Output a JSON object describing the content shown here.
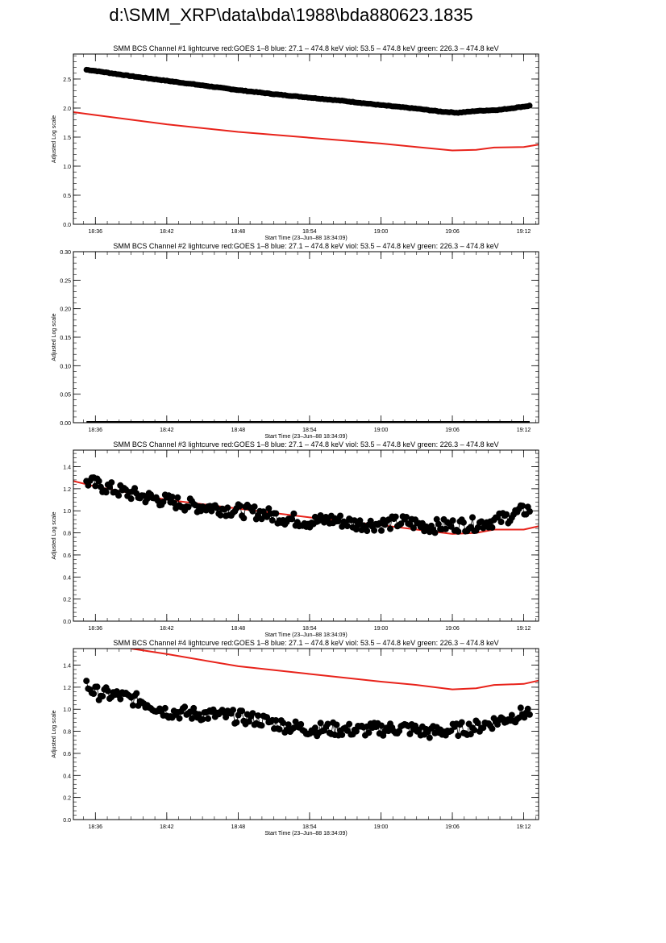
{
  "page": {
    "title": "d:\\SMM_XRP\\data\\bda\\1988\\bda880623.1835"
  },
  "colors": {
    "goes": "#e8231b",
    "bcs": "#000000",
    "axis": "#000000"
  },
  "chart_data": [
    {
      "type": "line",
      "title": "SMM BCS Channel #1 lightcurve  red:GOES 1–8  blue: 27.1 – 474.8 keV  viol: 53.5 – 474.8 keV  green: 226.3 – 474.8 keV",
      "xlabel": "Start Time (23–Jun–88 18:34:09)",
      "ylabel": "Adjusted Log scale",
      "xlim": [
        "18:34:09",
        "19:13:15"
      ],
      "ylim": [
        0,
        2.93
      ],
      "yticks": [
        "0.0",
        "0.5",
        "1.0",
        "1.5",
        "2.0",
        "2.5"
      ],
      "ytick_values": [
        0,
        0.5,
        1.0,
        1.5,
        2.0,
        2.5
      ],
      "xticks": [
        "18:36",
        "18:42",
        "18:48",
        "18:54",
        "19:00",
        "19:06",
        "19:12"
      ],
      "series": [
        {
          "color": "#e8231b",
          "style": "line",
          "x": [
            "18:34:09",
            "18:36:00",
            "18:42:00",
            "18:48:00",
            "18:54:00",
            "19:00:00",
            "19:03:00",
            "19:06:00",
            "19:08:00",
            "19:09:30",
            "19:12:00",
            "19:13:15"
          ],
          "values": [
            1.93,
            1.88,
            1.72,
            1.59,
            1.49,
            1.39,
            1.33,
            1.27,
            1.28,
            1.32,
            1.33,
            1.37
          ]
        },
        {
          "color": "#000000",
          "style": "markers",
          "x": [
            "18:35:15",
            "18:36:00",
            "18:39:00",
            "18:42:00",
            "18:45:00",
            "18:48:00",
            "18:51:00",
            "18:54:00",
            "18:57:00",
            "19:00:00",
            "19:03:00",
            "19:05:00",
            "19:06:30",
            "19:08:00",
            "19:10:00",
            "19:12:30"
          ],
          "values": [
            2.66,
            2.64,
            2.55,
            2.47,
            2.39,
            2.31,
            2.24,
            2.18,
            2.12,
            2.05,
            1.99,
            1.94,
            1.92,
            1.95,
            1.97,
            2.04
          ]
        }
      ]
    },
    {
      "type": "line",
      "title": "SMM BCS Channel #2 lightcurve  red:GOES 1–8  blue: 27.1 – 474.8 keV  viol: 53.5 – 474.8 keV  green: 226.3 – 474.8 keV",
      "xlabel": "Start Time (23–Jun–88 18:34:09)",
      "ylabel": "Adjusted Log scale",
      "xlim": [
        "18:34:09",
        "19:13:15"
      ],
      "ylim": [
        0,
        0.3
      ],
      "yticks": [
        "0.00",
        "0.05",
        "0.10",
        "0.15",
        "0.20",
        "0.25",
        "0.30"
      ],
      "ytick_values": [
        0,
        0.05,
        0.1,
        0.15,
        0.2,
        0.25,
        0.3
      ],
      "xticks": [
        "18:36",
        "18:42",
        "18:48",
        "18:54",
        "19:00",
        "19:06",
        "19:12"
      ],
      "series": [
        {
          "color": "#000000",
          "style": "flat",
          "x": [
            "18:35:15",
            "19:12:30"
          ],
          "values": [
            0.0,
            0.0
          ]
        }
      ]
    },
    {
      "type": "line",
      "title": "SMM BCS Channel #3 lightcurve  red:GOES 1–8  blue: 27.1 – 474.8 keV  viol: 53.5 – 474.8 keV  green: 226.3 – 474.8 keV",
      "xlabel": "Start Time (23–Jun–88 18:34:09)",
      "ylabel": "Adjusted Log scale",
      "xlim": [
        "18:34:09",
        "19:13:15"
      ],
      "ylim": [
        0,
        1.55
      ],
      "yticks": [
        "0.0",
        "0.2",
        "0.4",
        "0.6",
        "0.8",
        "1.0",
        "1.2",
        "1.4"
      ],
      "ytick_values": [
        0,
        0.2,
        0.4,
        0.6,
        0.8,
        1.0,
        1.2,
        1.4
      ],
      "xticks": [
        "18:36",
        "18:42",
        "18:48",
        "18:54",
        "19:00",
        "19:06",
        "19:12"
      ],
      "series": [
        {
          "color": "#e8231b",
          "style": "line",
          "x": [
            "18:34:09",
            "18:36:00",
            "18:42:00",
            "18:48:00",
            "18:54:00",
            "19:00:00",
            "19:03:00",
            "19:06:00",
            "19:08:00",
            "19:09:30",
            "19:12:00",
            "19:13:15"
          ],
          "values": [
            1.27,
            1.22,
            1.1,
            1.02,
            0.94,
            0.87,
            0.83,
            0.79,
            0.8,
            0.83,
            0.83,
            0.86
          ]
        },
        {
          "color": "#000000",
          "style": "markers",
          "x": [
            "18:35:15",
            "18:36:00",
            "18:38:00",
            "18:40:00",
            "18:42:00",
            "18:44:00",
            "18:46:00",
            "18:48:00",
            "18:50:00",
            "18:52:00",
            "18:54:00",
            "18:56:00",
            "18:58:00",
            "19:00:00",
            "19:02:00",
            "19:04:00",
            "19:06:00",
            "19:08:00",
            "19:10:00",
            "19:12:30"
          ],
          "values": [
            1.27,
            1.24,
            1.18,
            1.13,
            1.09,
            1.05,
            1.03,
            1.0,
            0.98,
            0.93,
            0.9,
            0.92,
            0.88,
            0.88,
            0.9,
            0.86,
            0.87,
            0.88,
            0.92,
            1.02
          ]
        }
      ]
    },
    {
      "type": "line",
      "title": "SMM BCS Channel #4 lightcurve  red:GOES 1–8  blue: 27.1 – 474.8 keV  viol: 53.5 – 474.8 keV  green: 226.3 – 474.8 keV",
      "xlabel": "Start Time (23–Jun–88 18:34:09)",
      "ylabel": "Adjusted Log scale",
      "xlim": [
        "18:34:09",
        "19:13:15"
      ],
      "ylim": [
        0,
        1.55
      ],
      "yticks": [
        "0.0",
        "0.2",
        "0.4",
        "0.6",
        "0.8",
        "1.0",
        "1.2",
        "1.4"
      ],
      "ytick_values": [
        0,
        0.2,
        0.4,
        0.6,
        0.8,
        1.0,
        1.2,
        1.4
      ],
      "xticks": [
        "18:36",
        "18:42",
        "18:48",
        "18:54",
        "19:00",
        "19:06",
        "19:12"
      ],
      "series": [
        {
          "color": "#e8231b",
          "style": "line",
          "x": [
            "18:39:00",
            "18:42:00",
            "18:48:00",
            "18:54:00",
            "19:00:00",
            "19:03:00",
            "19:06:00",
            "19:08:00",
            "19:09:30",
            "19:12:00",
            "19:13:15"
          ],
          "values": [
            1.55,
            1.5,
            1.39,
            1.32,
            1.25,
            1.22,
            1.18,
            1.19,
            1.22,
            1.23,
            1.26
          ]
        },
        {
          "color": "#000000",
          "style": "markers",
          "x": [
            "18:35:15",
            "18:36:00",
            "18:38:00",
            "18:40:00",
            "18:42:00",
            "18:44:00",
            "18:46:00",
            "18:48:00",
            "18:50:00",
            "18:52:00",
            "18:54:00",
            "18:56:00",
            "18:58:00",
            "19:00:00",
            "19:02:00",
            "19:04:00",
            "19:06:00",
            "19:08:00",
            "19:10:00",
            "19:12:30"
          ],
          "values": [
            1.22,
            1.15,
            1.12,
            1.07,
            0.98,
            0.96,
            0.95,
            0.93,
            0.9,
            0.85,
            0.82,
            0.82,
            0.81,
            0.82,
            0.83,
            0.79,
            0.81,
            0.84,
            0.9,
            0.98
          ]
        }
      ]
    }
  ]
}
